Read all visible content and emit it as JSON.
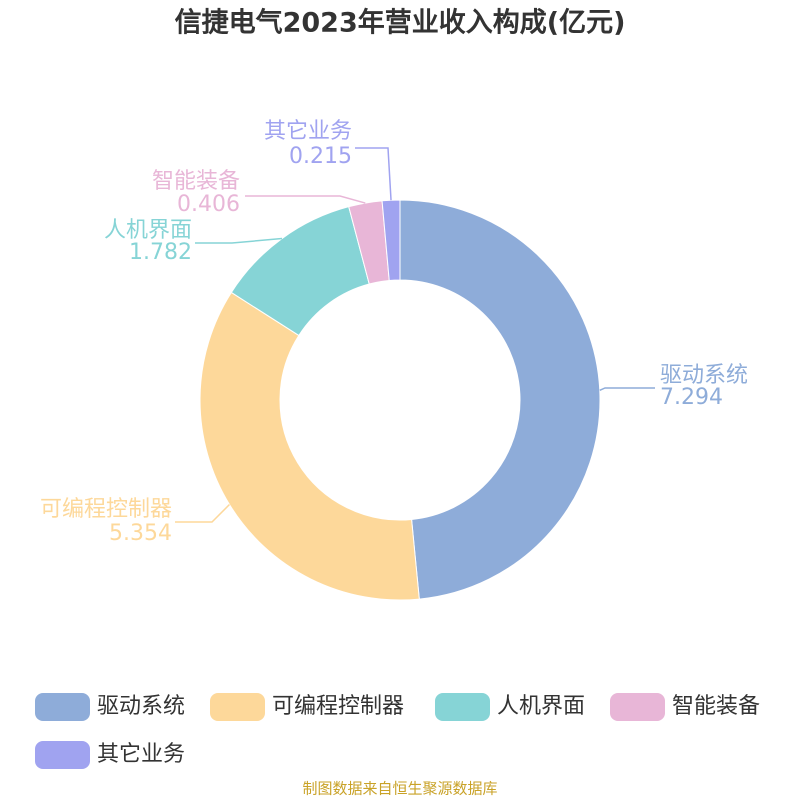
{
  "chart_data": {
    "type": "donut",
    "title": "信捷电气2023年营业收入构成(亿元)",
    "categories": [
      "驱动系统",
      "可编程控制器",
      "人机界面",
      "智能装备",
      "其它业务"
    ],
    "values": [
      7.294,
      5.354,
      1.782,
      0.406,
      0.215
    ],
    "colors": [
      "#8eacd9",
      "#fdd89a",
      "#86d4d6",
      "#e8b6d7",
      "#a0a3f0"
    ],
    "source": "制图数据来自恒生聚源数据库"
  }
}
